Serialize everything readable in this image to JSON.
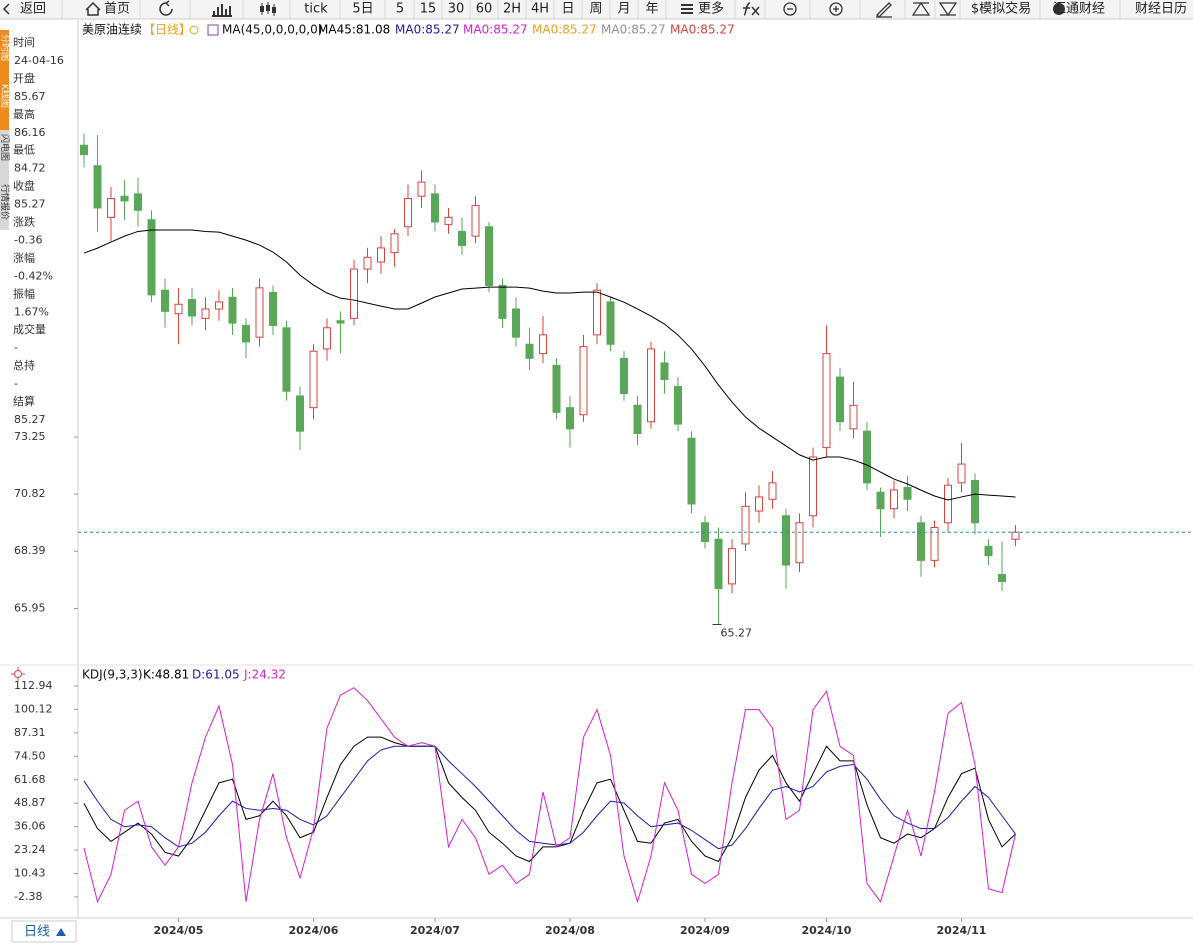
{
  "toolbar": [
    "返回",
    "首页",
    "tick",
    "5日",
    "5",
    "15",
    "30",
    "60",
    "2H",
    "4H",
    "日",
    "周",
    "月",
    "年",
    "更多",
    "$模拟交易",
    "汇通财经",
    "财经日历"
  ],
  "side_tabs": [
    "分时图",
    "K线图",
    "闪电图",
    "行情报价"
  ],
  "info_panel": {
    "time_label": "时间",
    "date": "24-04-16",
    "open_label": "开盘",
    "high_label": "最高",
    "low_label": "最低",
    "close_label": "收盘",
    "change_label": "涨跌",
    "change": -0.36,
    "pct_label": "涨幅",
    "change_pct": "-0.42%",
    "amp_label": "振幅",
    "amplitude": "1.67%",
    "volume_label": "成交量",
    "volume": "-",
    "oi_label": "总持",
    "open_interest": "-",
    "settle_label": "结算",
    "settlement": 85.27
  },
  "period_button": "日线",
  "chart_data": [
    {
      "type": "candlestick",
      "title": "美原油连续",
      "period": "【日线】",
      "indicator": "MA(45,0,0,0,0,0)",
      "ma_labels": [
        {
          "text": "MA45:81.08",
          "color": "#000000"
        },
        {
          "text": "MA0:85.27",
          "color": "#1c1ca8"
        },
        {
          "text": "MA0:85.27",
          "color": "#d61fd6"
        },
        {
          "text": "MA0:85.27",
          "color": "#f0a020"
        },
        {
          "text": "MA0:85.27",
          "color": "#909090"
        },
        {
          "text": "MA0:85.27",
          "color": "#d9443f"
        }
      ],
      "categories": [
        null,
        null,
        null,
        null,
        null,
        null,
        null,
        "2024/05",
        null,
        null,
        null,
        null,
        null,
        null,
        null,
        null,
        null,
        "2024/06",
        null,
        null,
        null,
        null,
        null,
        null,
        null,
        null,
        "2024/07",
        null,
        null,
        null,
        null,
        null,
        null,
        null,
        null,
        null,
        "2024/08",
        null,
        null,
        null,
        null,
        null,
        null,
        null,
        null,
        null,
        "2024/09",
        null,
        null,
        null,
        null,
        null,
        null,
        null,
        null,
        "2024/10",
        null,
        null,
        null,
        null,
        null,
        null,
        null,
        null,
        null,
        "2024/11",
        null,
        null,
        null,
        null
      ],
      "candles": [
        [
          85.67,
          86.16,
          84.72,
          85.27
        ],
        [
          84.8,
          86.1,
          82.0,
          83.0
        ],
        [
          82.6,
          83.9,
          81.6,
          83.4
        ],
        [
          83.5,
          84.2,
          82.5,
          83.3
        ],
        [
          83.6,
          84.3,
          82.2,
          82.9
        ],
        [
          82.5,
          82.9,
          79.0,
          79.3
        ],
        [
          79.5,
          80.0,
          77.9,
          78.6
        ],
        [
          78.5,
          79.6,
          77.2,
          78.9
        ],
        [
          79.1,
          79.6,
          78.0,
          78.4
        ],
        [
          78.3,
          79.2,
          77.8,
          78.7
        ],
        [
          78.7,
          79.5,
          78.2,
          79.0
        ],
        [
          79.2,
          79.6,
          77.6,
          78.1
        ],
        [
          78.0,
          78.3,
          76.6,
          77.3
        ],
        [
          77.5,
          80.0,
          77.1,
          79.6
        ],
        [
          79.4,
          79.7,
          77.6,
          78.0
        ],
        [
          77.9,
          78.2,
          74.8,
          75.2
        ],
        [
          75.0,
          75.4,
          72.7,
          73.5
        ],
        [
          74.5,
          77.2,
          74.0,
          76.9
        ],
        [
          77.0,
          78.3,
          76.5,
          77.9
        ],
        [
          78.2,
          78.6,
          76.8,
          78.1
        ],
        [
          78.3,
          80.8,
          78.0,
          80.4
        ],
        [
          80.4,
          81.3,
          79.8,
          80.9
        ],
        [
          80.7,
          81.8,
          80.2,
          81.3
        ],
        [
          81.1,
          82.1,
          80.5,
          81.9
        ],
        [
          82.2,
          84.0,
          81.8,
          83.4
        ],
        [
          83.5,
          84.6,
          83.0,
          84.1
        ],
        [
          83.6,
          84.0,
          82.0,
          82.4
        ],
        [
          82.3,
          83.0,
          81.9,
          82.6
        ],
        [
          82.0,
          82.6,
          81.0,
          81.4
        ],
        [
          81.8,
          83.5,
          81.5,
          83.1
        ],
        [
          82.2,
          82.4,
          79.4,
          79.7
        ],
        [
          79.7,
          80.0,
          77.9,
          78.3
        ],
        [
          78.7,
          79.2,
          77.1,
          77.5
        ],
        [
          77.2,
          77.9,
          76.1,
          76.6
        ],
        [
          76.8,
          78.4,
          76.4,
          77.6
        ],
        [
          76.3,
          76.6,
          74.0,
          74.3
        ],
        [
          74.5,
          75.0,
          72.8,
          73.6
        ],
        [
          74.2,
          77.6,
          73.9,
          77.1
        ],
        [
          77.6,
          79.8,
          77.2,
          79.5
        ],
        [
          79.0,
          79.2,
          76.9,
          77.2
        ],
        [
          76.6,
          76.9,
          74.8,
          75.1
        ],
        [
          74.6,
          75.0,
          72.9,
          73.4
        ],
        [
          73.9,
          77.3,
          73.6,
          77.0
        ],
        [
          76.4,
          76.9,
          75.1,
          75.7
        ],
        [
          75.4,
          75.8,
          73.5,
          73.8
        ],
        [
          73.2,
          73.5,
          70.0,
          70.4
        ],
        [
          69.6,
          69.9,
          68.5,
          68.8
        ],
        [
          68.9,
          69.4,
          65.27,
          66.8
        ],
        [
          67.0,
          68.9,
          66.6,
          68.5
        ],
        [
          68.7,
          70.9,
          68.4,
          70.3
        ],
        [
          70.1,
          71.2,
          69.6,
          70.7
        ],
        [
          70.6,
          71.8,
          70.2,
          71.3
        ],
        [
          69.9,
          70.2,
          66.8,
          67.8
        ],
        [
          67.9,
          70.0,
          67.5,
          69.6
        ],
        [
          69.9,
          72.8,
          69.4,
          72.4
        ],
        [
          72.8,
          78.0,
          72.4,
          76.8
        ],
        [
          75.8,
          76.2,
          73.5,
          73.9
        ],
        [
          73.6,
          75.6,
          73.2,
          74.6
        ],
        [
          73.5,
          73.9,
          71.0,
          71.3
        ],
        [
          70.9,
          71.1,
          69.0,
          70.2
        ],
        [
          70.2,
          71.4,
          69.8,
          71.0
        ],
        [
          71.1,
          71.6,
          70.1,
          70.6
        ],
        [
          69.6,
          69.9,
          67.3,
          68.0
        ],
        [
          68.0,
          69.7,
          67.7,
          69.4
        ],
        [
          69.6,
          71.5,
          69.2,
          71.2
        ],
        [
          71.3,
          73.0,
          70.9,
          72.1
        ],
        [
          71.4,
          71.7,
          69.1,
          69.6
        ],
        [
          68.6,
          68.9,
          67.8,
          68.2
        ],
        [
          67.4,
          68.8,
          66.7,
          67.1
        ],
        [
          68.9,
          69.5,
          68.6,
          69.2
        ]
      ],
      "up_color": "#d9443f",
      "down_color": "#5aa75a",
      "ma": {
        "color": "#000000",
        "values": [
          81.08,
          81.29,
          81.55,
          81.8,
          82.0,
          82.06,
          82.06,
          82.06,
          82.06,
          82.0,
          81.97,
          81.8,
          81.63,
          81.42,
          81.12,
          80.7,
          80.14,
          79.72,
          79.38,
          79.16,
          79.08,
          78.95,
          78.82,
          78.7,
          78.7,
          78.95,
          79.21,
          79.38,
          79.55,
          79.59,
          79.63,
          79.63,
          79.63,
          79.59,
          79.46,
          79.38,
          79.38,
          79.42,
          79.42,
          79.21,
          78.99,
          78.7,
          78.4,
          78.06,
          77.59,
          77.0,
          76.27,
          75.46,
          74.74,
          74.1,
          73.63,
          73.25,
          72.87,
          72.49,
          72.27,
          72.4,
          72.4,
          72.27,
          72.06,
          71.76,
          71.46,
          71.25,
          70.99,
          70.74,
          70.57,
          70.7,
          70.82,
          70.78,
          70.74,
          70.7
        ]
      },
      "last_line_color": "#2a8fa0",
      "ylim": [
        63.76,
        91.0
      ],
      "yticks": [
        73.25,
        70.82,
        68.39,
        65.95
      ]
    },
    {
      "type": "line",
      "title": "KDJ(9,3,3)",
      "series": [
        {
          "name": "K:48.81",
          "color": "#000000",
          "values": [
            48.81,
            35,
            28,
            33,
            38,
            32,
            22,
            20,
            30,
            45,
            60,
            62,
            40,
            42,
            50,
            42,
            30,
            33,
            52,
            70,
            80,
            85,
            85,
            82,
            80,
            80,
            80,
            60,
            52,
            45,
            33,
            27,
            20,
            17,
            25,
            25,
            27,
            45,
            60,
            62,
            45,
            28,
            27,
            38,
            40,
            28,
            20,
            17,
            30,
            52,
            67,
            75,
            60,
            50,
            65,
            80,
            72,
            72,
            48,
            30,
            27,
            32,
            30,
            35,
            52,
            65,
            68,
            40,
            25,
            32
          ]
        },
        {
          "name": "D:61.05",
          "color": "#1c1ca8",
          "values": [
            61.05,
            50,
            40,
            36,
            37,
            36,
            30,
            25,
            27,
            33,
            42,
            50,
            46,
            45,
            46,
            45,
            40,
            37,
            42,
            52,
            62,
            72,
            78,
            80,
            80,
            80,
            80,
            72,
            65,
            58,
            50,
            42,
            34,
            28,
            27,
            26,
            27,
            33,
            42,
            50,
            49,
            42,
            36,
            37,
            38,
            34,
            29,
            24,
            26,
            35,
            46,
            56,
            58,
            55,
            58,
            66,
            69,
            70,
            62,
            51,
            42,
            38,
            35,
            35,
            41,
            50,
            58,
            52,
            42,
            32
          ]
        },
        {
          "name": "J:24.32",
          "color": "#d61fd6",
          "values": [
            24.32,
            -5,
            10,
            45,
            50,
            25,
            15,
            25,
            60,
            85,
            102,
            70,
            -5,
            40,
            65,
            30,
            8,
            35,
            90,
            108,
            112,
            105,
            95,
            85,
            80,
            82,
            80,
            25,
            40,
            30,
            10,
            15,
            5,
            10,
            55,
            25,
            30,
            85,
            100,
            75,
            20,
            -5,
            20,
            60,
            45,
            10,
            5,
            10,
            60,
            100,
            100,
            90,
            40,
            45,
            100,
            110,
            80,
            75,
            5,
            -5,
            20,
            45,
            20,
            55,
            98,
            104,
            70,
            2,
            0,
            32
          ]
        }
      ],
      "ylim": [
        -13.9,
        120.6
      ],
      "yticks": [
        112.94,
        100.12,
        87.31,
        {
          "value": 74.5,
          "label": "74.50"
        },
        61.68,
        48.87,
        36.06,
        23.24,
        10.43,
        -2.38
      ]
    }
  ]
}
